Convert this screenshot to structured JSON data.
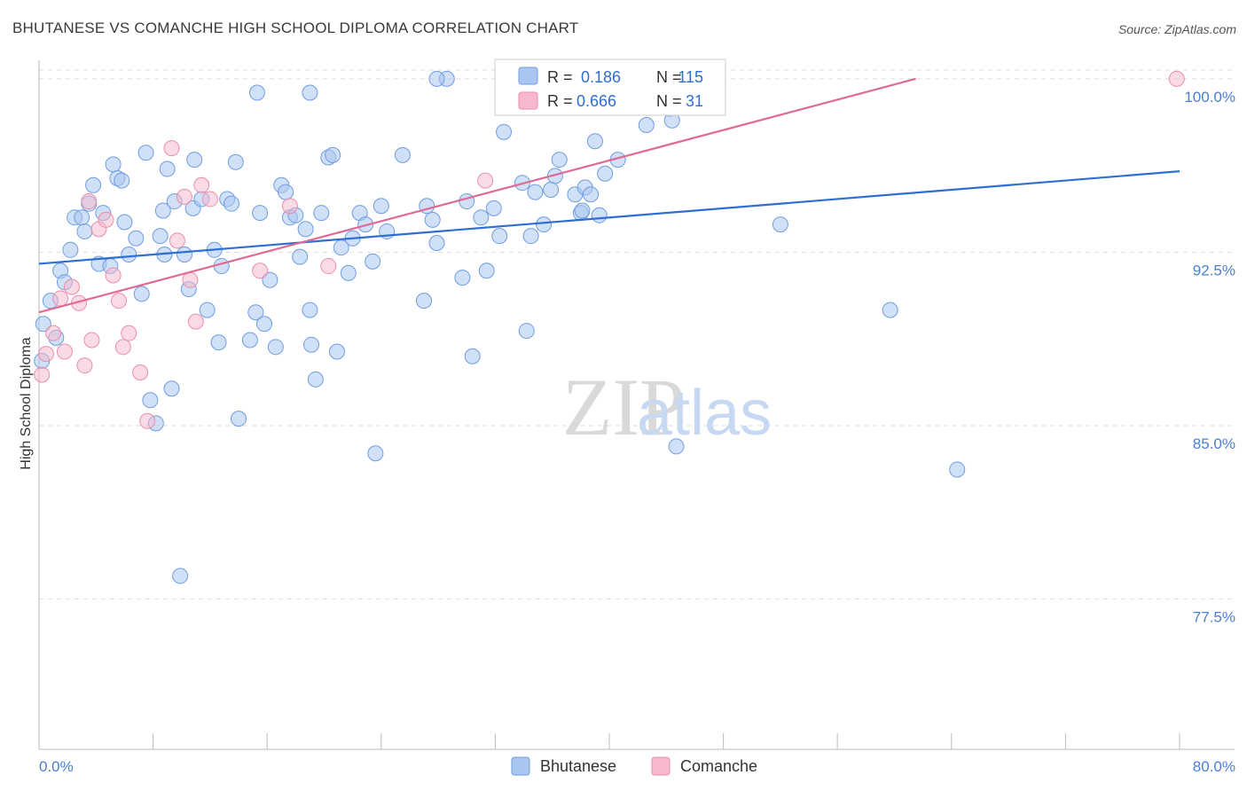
{
  "title": "BHUTANESE VS COMANCHE HIGH SCHOOL DIPLOMA CORRELATION CHART",
  "source": "Source: ZipAtlas.com",
  "watermark": {
    "zip": "ZIP",
    "atlas": "atlas"
  },
  "colors": {
    "blue_fill": "#a9c6f0",
    "blue_stroke": "#6f9de0",
    "blue_line": "#2e6fd1",
    "pink_fill": "#f6b8cb",
    "pink_stroke": "#ea8eab",
    "pink_line": "#e06a94",
    "tick_text": "#4a7fd6",
    "grid": "#dddddd"
  },
  "legend": {
    "rows": [
      {
        "r_label": "R =",
        "r_value": "0.186",
        "n_label": "N =",
        "n_value": "115",
        "color": "blue"
      },
      {
        "r_label": "R =",
        "r_value": "0.666",
        "n_label": "N =",
        "n_value": "31",
        "color": "pink"
      }
    ]
  },
  "bottom_legend": [
    {
      "label": "Bhutanese",
      "color": "blue"
    },
    {
      "label": "Comanche",
      "color": "pink"
    }
  ],
  "chart_data": {
    "type": "scatter",
    "xlabel": "",
    "ylabel": "High School Diploma",
    "xlim": [
      0,
      80
    ],
    "ylim": [
      71.0,
      100.8
    ],
    "x_tick_labels": [
      {
        "value": 0,
        "label": "0.0%"
      },
      {
        "value": 80,
        "label": "80.0%"
      }
    ],
    "y_ticks": [
      {
        "value": 100.0,
        "label": "100.0%"
      },
      {
        "value": 92.5,
        "label": "92.5%"
      },
      {
        "value": 85.0,
        "label": "85.0%"
      },
      {
        "value": 77.5,
        "label": "77.5%"
      }
    ],
    "series": [
      {
        "name": "Bhutanese",
        "color": "blue",
        "trend": {
          "x": [
            0,
            80
          ],
          "y": [
            92.0,
            96.0
          ]
        },
        "points": [
          [
            0.2,
            87.8
          ],
          [
            0.3,
            89.4
          ],
          [
            0.8,
            90.4
          ],
          [
            1.2,
            88.8
          ],
          [
            1.5,
            91.7
          ],
          [
            1.8,
            91.2
          ],
          [
            2.2,
            92.6
          ],
          [
            2.5,
            94.0
          ],
          [
            3.0,
            94.0
          ],
          [
            3.2,
            93.4
          ],
          [
            3.5,
            94.6
          ],
          [
            3.8,
            95.4
          ],
          [
            4.2,
            92.0
          ],
          [
            4.5,
            94.2
          ],
          [
            5.0,
            91.9
          ],
          [
            5.2,
            96.3
          ],
          [
            5.5,
            95.7
          ],
          [
            5.8,
            95.6
          ],
          [
            6.0,
            93.8
          ],
          [
            6.3,
            92.4
          ],
          [
            6.8,
            93.1
          ],
          [
            7.2,
            90.7
          ],
          [
            7.5,
            96.8
          ],
          [
            7.8,
            86.1
          ],
          [
            8.2,
            85.1
          ],
          [
            8.5,
            93.2
          ],
          [
            8.8,
            92.4
          ],
          [
            8.7,
            94.3
          ],
          [
            9.0,
            96.1
          ],
          [
            9.3,
            86.6
          ],
          [
            9.5,
            94.7
          ],
          [
            9.9,
            78.5
          ],
          [
            10.2,
            92.4
          ],
          [
            10.5,
            90.9
          ],
          [
            10.8,
            94.4
          ],
          [
            10.9,
            96.5
          ],
          [
            11.4,
            94.8
          ],
          [
            11.8,
            90.0
          ],
          [
            12.3,
            92.6
          ],
          [
            12.6,
            88.6
          ],
          [
            12.8,
            91.9
          ],
          [
            13.2,
            94.8
          ],
          [
            13.5,
            94.6
          ],
          [
            13.8,
            96.4
          ],
          [
            14.0,
            85.3
          ],
          [
            14.8,
            88.7
          ],
          [
            15.2,
            89.9
          ],
          [
            15.5,
            94.2
          ],
          [
            15.8,
            89.4
          ],
          [
            16.2,
            91.3
          ],
          [
            16.6,
            88.4
          ],
          [
            17.0,
            95.4
          ],
          [
            17.3,
            95.1
          ],
          [
            17.6,
            94.0
          ],
          [
            18.0,
            94.1
          ],
          [
            18.3,
            92.3
          ],
          [
            18.7,
            93.5
          ],
          [
            19.0,
            90.0
          ],
          [
            19.1,
            88.5
          ],
          [
            19.4,
            87.0
          ],
          [
            19.8,
            94.2
          ],
          [
            20.3,
            96.6
          ],
          [
            20.6,
            96.7
          ],
          [
            20.9,
            88.2
          ],
          [
            21.2,
            92.7
          ],
          [
            21.7,
            91.6
          ],
          [
            22.0,
            93.1
          ],
          [
            22.5,
            94.2
          ],
          [
            22.9,
            93.7
          ],
          [
            23.4,
            92.1
          ],
          [
            23.6,
            83.8
          ],
          [
            24.0,
            94.5
          ],
          [
            24.4,
            93.4
          ],
          [
            25.5,
            96.7
          ],
          [
            27.0,
            90.4
          ],
          [
            27.2,
            94.5
          ],
          [
            27.6,
            93.9
          ],
          [
            27.9,
            92.9
          ],
          [
            28.6,
            100.0
          ],
          [
            29.7,
            91.4
          ],
          [
            30.0,
            94.7
          ],
          [
            30.4,
            88.0
          ],
          [
            31.0,
            94.0
          ],
          [
            31.4,
            91.7
          ],
          [
            31.9,
            94.4
          ],
          [
            32.3,
            93.2
          ],
          [
            32.6,
            97.7
          ],
          [
            33.9,
            95.5
          ],
          [
            34.2,
            89.1
          ],
          [
            34.5,
            93.2
          ],
          [
            34.8,
            95.1
          ],
          [
            35.4,
            93.7
          ],
          [
            35.9,
            95.2
          ],
          [
            36.2,
            95.8
          ],
          [
            36.5,
            96.5
          ],
          [
            37.6,
            95.0
          ],
          [
            38.0,
            94.2
          ],
          [
            38.1,
            94.3
          ],
          [
            38.3,
            95.3
          ],
          [
            38.7,
            95.0
          ],
          [
            39.0,
            97.3
          ],
          [
            39.3,
            94.1
          ],
          [
            39.7,
            95.9
          ],
          [
            40.6,
            96.5
          ],
          [
            42.6,
            98.0
          ],
          [
            43.1,
            100.0
          ],
          [
            44.2,
            98.7
          ],
          [
            44.4,
            98.2
          ],
          [
            44.7,
            84.1
          ],
          [
            52.0,
            93.7
          ],
          [
            59.7,
            90.0
          ],
          [
            64.4,
            83.1
          ],
          [
            19.0,
            99.4
          ],
          [
            27.9,
            100.0
          ],
          [
            15.3,
            99.4
          ]
        ]
      },
      {
        "name": "Comanche",
        "color": "pink",
        "trend": {
          "x": [
            0,
            61.5
          ],
          "y": [
            89.9,
            100.0
          ]
        },
        "points": [
          [
            0.2,
            87.2
          ],
          [
            0.5,
            88.1
          ],
          [
            1.0,
            89.0
          ],
          [
            1.5,
            90.5
          ],
          [
            1.8,
            88.2
          ],
          [
            2.3,
            91.0
          ],
          [
            2.8,
            90.3
          ],
          [
            3.2,
            87.6
          ],
          [
            3.5,
            94.7
          ],
          [
            3.7,
            88.7
          ],
          [
            4.2,
            93.5
          ],
          [
            4.7,
            93.9
          ],
          [
            5.2,
            91.5
          ],
          [
            5.6,
            90.4
          ],
          [
            5.9,
            88.4
          ],
          [
            6.3,
            89.0
          ],
          [
            7.1,
            87.3
          ],
          [
            7.6,
            85.2
          ],
          [
            9.3,
            97.0
          ],
          [
            9.7,
            93.0
          ],
          [
            10.2,
            94.9
          ],
          [
            10.6,
            91.3
          ],
          [
            11.0,
            89.5
          ],
          [
            11.4,
            95.4
          ],
          [
            12.0,
            94.8
          ],
          [
            15.5,
            91.7
          ],
          [
            17.6,
            94.5
          ],
          [
            20.3,
            91.9
          ],
          [
            31.3,
            95.6
          ],
          [
            33.7,
            100.0
          ],
          [
            79.8,
            100.0
          ]
        ]
      }
    ]
  }
}
